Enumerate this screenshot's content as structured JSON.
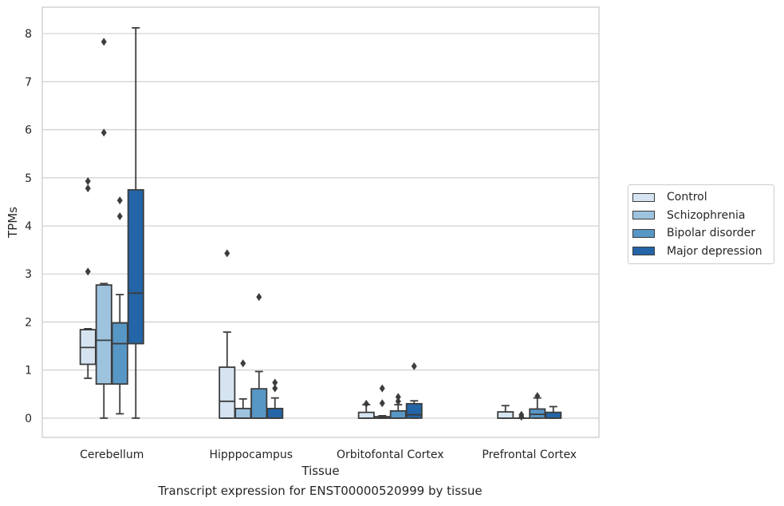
{
  "chart_data": {
    "type": "boxplot",
    "caption": "Transcript expression for ENST00000520999 by tissue",
    "xlabel": "Tissue",
    "ylabel": "TPMs",
    "ylim": [
      -0.4,
      8.55
    ],
    "yticks": [
      0,
      1,
      2,
      3,
      4,
      5,
      6,
      7,
      8
    ],
    "grid": "horizontal",
    "legend_position": "right",
    "categories": [
      "Cerebellum",
      "Hipppocampus",
      "Orbitofontal Cortex",
      "Prefrontal Cortex"
    ],
    "series": [
      {
        "name": "Control",
        "color": "#d6e4f2",
        "boxes": [
          {
            "whislo": 0.83,
            "q1": 1.12,
            "med": 1.47,
            "q3": 1.84,
            "whishi": 1.86,
            "fliers": [
              3.05,
              4.78,
              4.93
            ]
          },
          {
            "whislo": 0.0,
            "q1": 0.0,
            "med": 0.35,
            "q3": 1.06,
            "whishi": 1.79,
            "fliers": [
              3.43
            ]
          },
          {
            "whislo": 0.0,
            "q1": 0.0,
            "med": 0.0,
            "q3": 0.12,
            "whishi": 0.28,
            "fliers": [
              0.3
            ]
          },
          {
            "whislo": 0.0,
            "q1": 0.0,
            "med": 0.0,
            "q3": 0.13,
            "whishi": 0.26,
            "fliers": []
          }
        ]
      },
      {
        "name": "Schizophrenia",
        "color": "#9dc3df",
        "boxes": [
          {
            "whislo": 0.0,
            "q1": 0.71,
            "med": 1.62,
            "q3": 2.77,
            "whishi": 2.8,
            "fliers": [
              5.94,
              7.83
            ]
          },
          {
            "whislo": 0.0,
            "q1": 0.0,
            "med": 0.0,
            "q3": 0.2,
            "whishi": 0.4,
            "fliers": [
              1.14
            ]
          },
          {
            "whislo": 0.0,
            "q1": 0.0,
            "med": 0.0,
            "q3": 0.03,
            "whishi": 0.05,
            "fliers": [
              0.31,
              0.62
            ]
          },
          {
            "whislo": 0.0,
            "q1": 0.0,
            "med": 0.0,
            "q3": 0.0,
            "whishi": 0.0,
            "fliers": [
              0.03,
              0.07
            ]
          }
        ]
      },
      {
        "name": "Bipolar disorder",
        "color": "#5797c6",
        "boxes": [
          {
            "whislo": 0.09,
            "q1": 0.71,
            "med": 1.55,
            "q3": 1.98,
            "whishi": 2.57,
            "fliers": [
              4.2,
              4.53
            ]
          },
          {
            "whislo": 0.0,
            "q1": 0.0,
            "med": 0.0,
            "q3": 0.61,
            "whishi": 0.97,
            "fliers": [
              2.52
            ]
          },
          {
            "whislo": 0.0,
            "q1": 0.0,
            "med": 0.0,
            "q3": 0.15,
            "whishi": 0.28,
            "fliers": [
              0.35,
              0.44
            ]
          },
          {
            "whislo": 0.0,
            "q1": 0.0,
            "med": 0.08,
            "q3": 0.19,
            "whishi": 0.42,
            "fliers": [
              0.46
            ]
          }
        ]
      },
      {
        "name": "Major depression",
        "color": "#2365a6",
        "boxes": [
          {
            "whislo": 0.0,
            "q1": 1.55,
            "med": 2.6,
            "q3": 4.75,
            "whishi": 8.12,
            "fliers": []
          },
          {
            "whislo": 0.0,
            "q1": 0.0,
            "med": 0.0,
            "q3": 0.2,
            "whishi": 0.42,
            "fliers": [
              0.62,
              0.74
            ]
          },
          {
            "whislo": 0.0,
            "q1": 0.0,
            "med": 0.07,
            "q3": 0.3,
            "whishi": 0.36,
            "fliers": [
              1.08
            ]
          },
          {
            "whislo": 0.0,
            "q1": 0.0,
            "med": 0.0,
            "q3": 0.12,
            "whishi": 0.24,
            "fliers": []
          }
        ]
      }
    ]
  }
}
